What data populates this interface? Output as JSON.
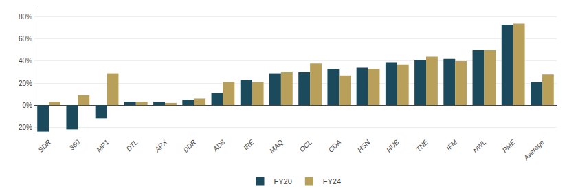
{
  "chart_data": {
    "type": "bar",
    "categories": [
      "SDR",
      "360",
      "MP1",
      "DTL",
      "APX",
      "DDR",
      "AD8",
      "IRE",
      "MAQ",
      "OCL",
      "CDA",
      "HSN",
      "HUB",
      "TNE",
      "IFM",
      "NWL",
      "PME",
      "Average"
    ],
    "series": [
      {
        "name": "FY20",
        "color": "#1a4a5c",
        "values": [
          -24,
          -22,
          -12,
          3,
          3,
          5,
          11,
          23,
          29,
          30,
          33,
          34,
          39,
          41,
          42,
          50,
          73,
          21
        ]
      },
      {
        "name": "FY24",
        "color": "#b8a05a",
        "values": [
          3,
          9,
          29,
          3,
          2,
          6,
          21,
          21,
          30,
          38,
          27,
          33,
          37,
          44,
          40,
          50,
          74,
          28
        ]
      }
    ],
    "ylim": [
      -28,
      88
    ],
    "yticks": [
      {
        "value": -20,
        "label": "-20%"
      },
      {
        "value": 0,
        "label": "0%"
      },
      {
        "value": 20,
        "label": "20%"
      },
      {
        "value": 40,
        "label": "40%"
      },
      {
        "value": 60,
        "label": "60%"
      },
      {
        "value": 80,
        "label": "80%"
      }
    ],
    "grid": true,
    "legend": "bottom"
  }
}
